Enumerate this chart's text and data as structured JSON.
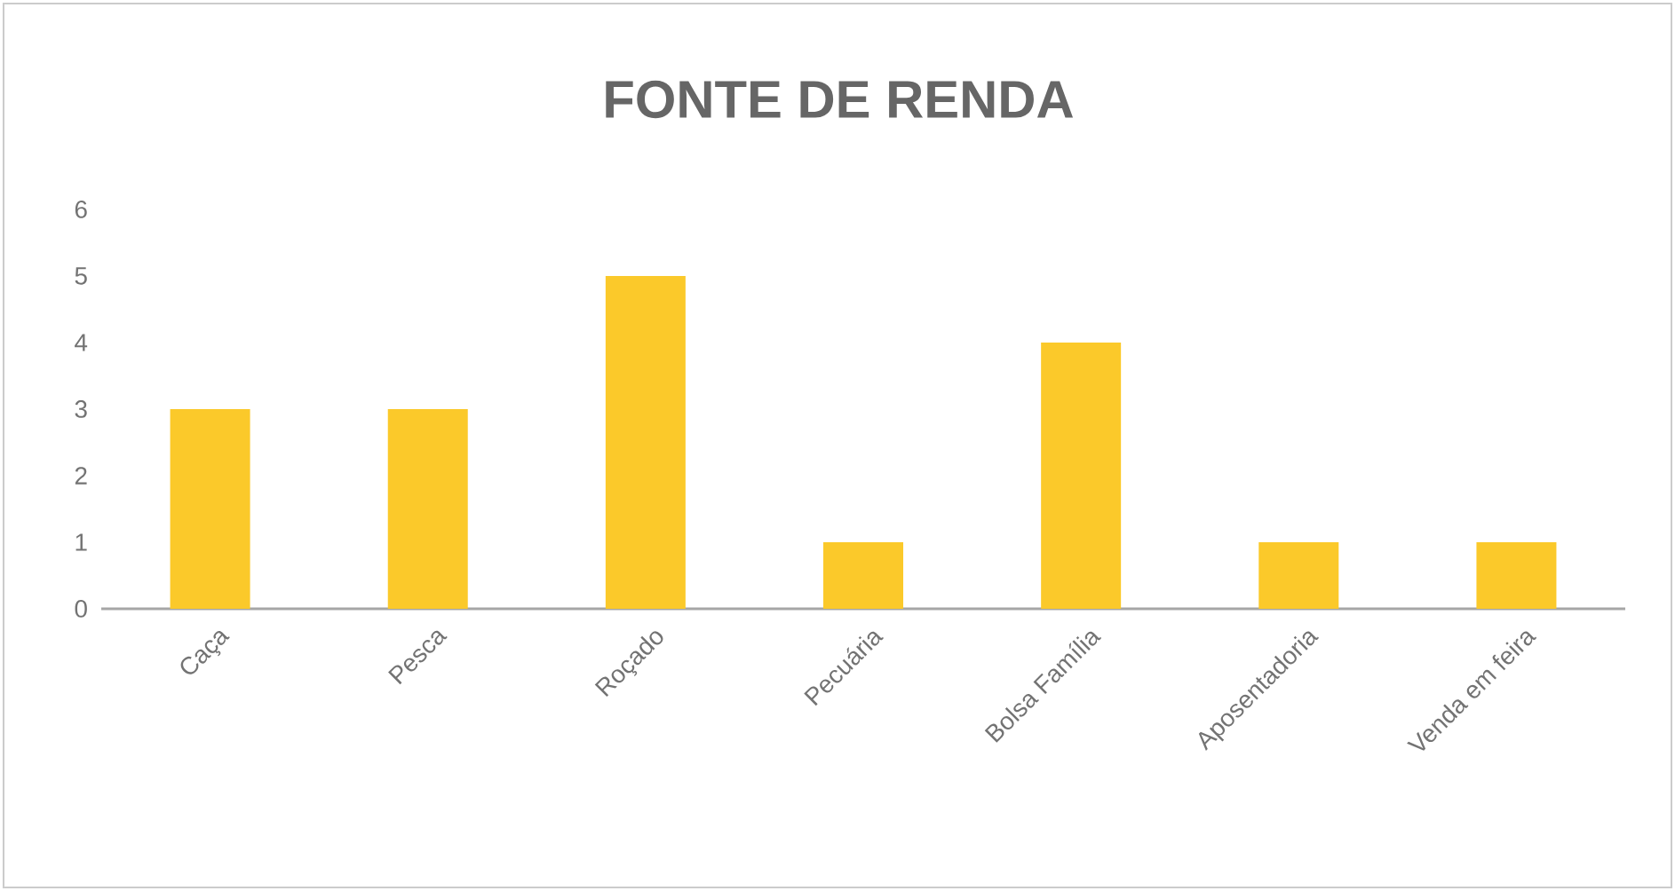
{
  "chart_data": {
    "type": "bar",
    "title": "FONTE DE RENDA",
    "categories": [
      "Caça",
      "Pesca",
      "Roçado",
      "Pecuária",
      "Bolsa Família",
      "Aposentadoria",
      "Venda em feira"
    ],
    "values": [
      3,
      3,
      5,
      1,
      4,
      1,
      1
    ],
    "color": "#fbc92a",
    "ylim": [
      0,
      6
    ],
    "yticks": [
      0,
      1,
      2,
      3,
      4,
      5,
      6
    ]
  }
}
